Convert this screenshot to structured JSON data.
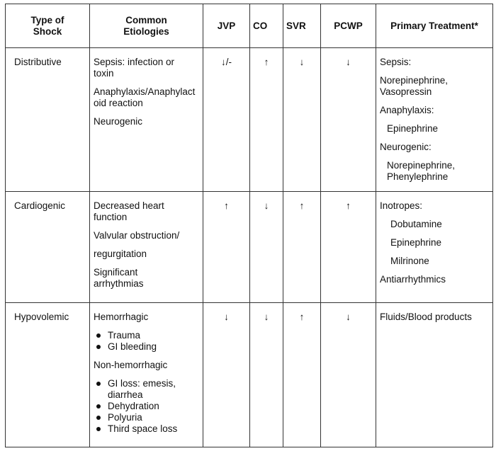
{
  "headers": [
    "Type of Shock",
    "Common Etiologies",
    "JVP",
    "CO",
    "SVR",
    "PCWP",
    "Primary Treatment*"
  ],
  "rows": [
    {
      "type": "Distributive",
      "etiologies": [
        "Sepsis: infection or toxin",
        "Anaphylaxis/Anaphylactoid reaction",
        "Neurogenic"
      ],
      "jvp": "↓/-",
      "co": "↑",
      "svr": "↓",
      "pcwp": "↓",
      "treatment": [
        "Sepsis:",
        "Norepinephrine, Vasopressin",
        "Anaphylaxis:",
        "Epinephrine",
        "Neurogenic:",
        "Norepinephrine, Phenylephrine"
      ]
    },
    {
      "type": "Cardiogenic",
      "etiologies": [
        "Decreased heart function",
        "Valvular obstruction/",
        "regurgitation",
        "Significant arrhythmias"
      ],
      "jvp": "↑",
      "co": "↓",
      "svr": "↑",
      "pcwp": "↑",
      "treatment": [
        "Inotropes:",
        "Dobutamine",
        "Epinephrine",
        "Milrinone",
        "Antiarrhythmics"
      ]
    },
    {
      "type": "Hypovolemic",
      "etiologies": {
        "hemorrhagic": "Hemorrhagic",
        "hemorrhagic_items": [
          "Trauma",
          "GI bleeding"
        ],
        "non_hemorrhagic": "Non-hemorrhagic",
        "non_hemorrhagic_items": [
          "GI loss: emesis, diarrhea",
          "Dehydration",
          "Polyuria",
          "Third space loss"
        ]
      },
      "jvp": "↓",
      "co": "↓",
      "svr": "↑",
      "pcwp": "↓",
      "treatment": [
        "Fluids/Blood products"
      ]
    }
  ]
}
